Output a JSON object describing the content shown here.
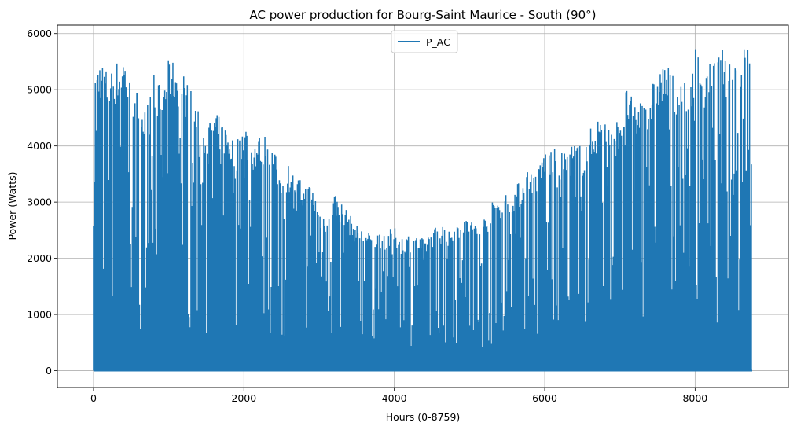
{
  "chart_data": {
    "type": "line",
    "title": "AC power production for Bourg-Saint Maurice - South (90°)",
    "xlabel": "Hours (0-8759)",
    "ylabel": "Power (Watts)",
    "xlim": [
      -480,
      9240
    ],
    "ylim": [
      -300,
      6150
    ],
    "xticks": [
      0,
      2000,
      4000,
      6000,
      8000
    ],
    "yticks": [
      0,
      1000,
      2000,
      3000,
      4000,
      5000,
      6000
    ],
    "grid": true,
    "legend_position": "top-center",
    "series": [
      {
        "name": "P_AC",
        "color": "#1f77b4",
        "hours": [
          0,
          8759
        ],
        "daily_peak_x": [
          0,
          100,
          200,
          300,
          400,
          500,
          600,
          700,
          800,
          900,
          1000,
          1100,
          1200,
          1300,
          1400,
          1500,
          1600,
          1700,
          1800,
          1900,
          2000,
          2100,
          2200,
          2300,
          2400,
          2500,
          2600,
          2700,
          2800,
          2900,
          3000,
          3100,
          3200,
          3300,
          3400,
          3500,
          3600,
          3700,
          3800,
          3900,
          4000,
          4100,
          4200,
          4300,
          4400,
          4500,
          4600,
          4700,
          4800,
          4900,
          5000,
          5100,
          5200,
          5300,
          5400,
          5500,
          5600,
          5700,
          5800,
          5900,
          6000,
          6100,
          6200,
          6300,
          6400,
          6500,
          6600,
          6700,
          6800,
          6900,
          7000,
          7100,
          7200,
          7300,
          7400,
          7500,
          7600,
          7700,
          7800,
          7900,
          8000,
          8100,
          8200,
          8300,
          8400,
          8500,
          8600,
          8700,
          8759
        ],
        "daily_peak_y": [
          5450,
          5600,
          5300,
          5500,
          5700,
          5100,
          5000,
          4600,
          5500,
          5000,
          5550,
          5500,
          5300,
          5000,
          4600,
          4400,
          4600,
          4500,
          4300,
          4100,
          4500,
          4100,
          4200,
          4250,
          3900,
          3600,
          3700,
          3500,
          3300,
          3350,
          2900,
          2800,
          3200,
          3000,
          2800,
          2600,
          2500,
          2450,
          2500,
          2500,
          2550,
          2400,
          2450,
          2400,
          2350,
          2550,
          2600,
          2650,
          2600,
          2800,
          2750,
          2600,
          2750,
          3000,
          3150,
          3200,
          3300,
          3400,
          3700,
          3550,
          4000,
          4000,
          3850,
          3950,
          4100,
          4000,
          4300,
          4500,
          4700,
          4300,
          4600,
          5100,
          4700,
          4950,
          5000,
          5400,
          5500,
          5300,
          5300,
          5000,
          5800,
          5600,
          5500,
          5600,
          5800,
          5600,
          5700,
          5850,
          5800
        ]
      }
    ]
  }
}
